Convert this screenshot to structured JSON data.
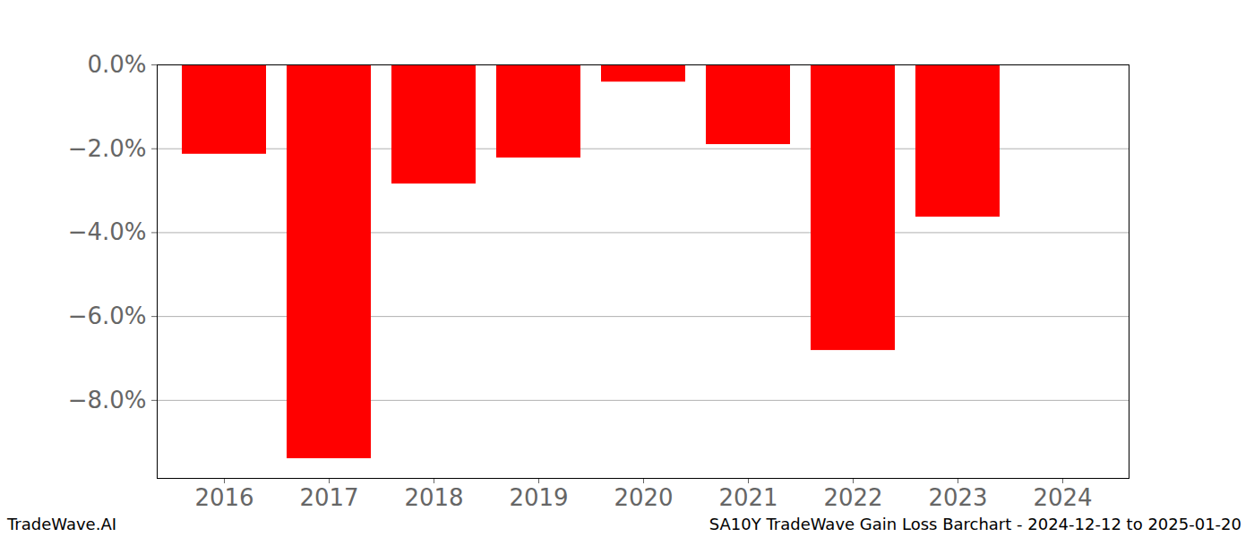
{
  "chart_data": {
    "type": "bar",
    "title": "SA10Y TradeWave Gain Loss Barchart - 2024-12-12 to 2025-01-20",
    "source": "TradeWave.AI",
    "categories": [
      "2016",
      "2017",
      "2018",
      "2019",
      "2020",
      "2021",
      "2022",
      "2023",
      "2024"
    ],
    "values": [
      -2.13,
      -9.39,
      -2.84,
      -2.22,
      -0.41,
      -1.9,
      -6.81,
      -3.63,
      null
    ],
    "color": "#ff0000",
    "ylim": [
      -9.86,
      0
    ],
    "yticks": [
      {
        "value": -8,
        "label": "−8.0%"
      },
      {
        "value": -6,
        "label": "−6.0%"
      },
      {
        "value": -4,
        "label": "−4.0%"
      },
      {
        "value": -2,
        "label": "−2.0%"
      },
      {
        "value": 0,
        "label": "0.0%"
      }
    ],
    "grid": true
  }
}
